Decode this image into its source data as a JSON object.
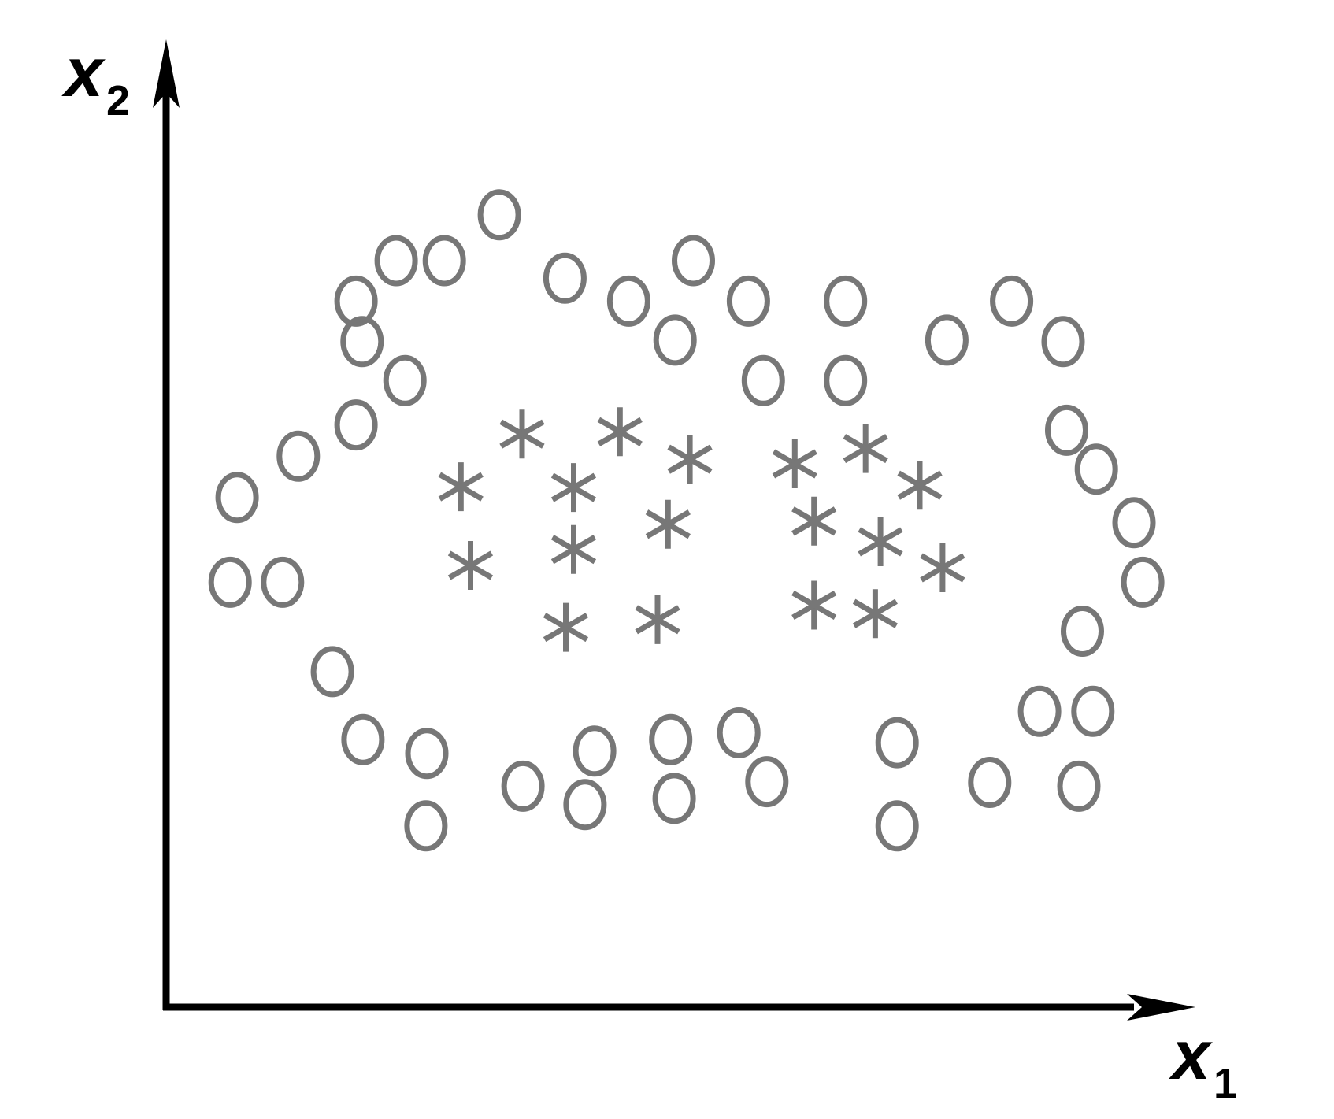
{
  "chart_data": {
    "type": "scatter",
    "xlabel": "x",
    "xlabel_sub": "1",
    "ylabel": "x",
    "ylabel_sub": "2",
    "xlim": [
      0,
      100
    ],
    "ylim": [
      0,
      100
    ],
    "grid": false,
    "ticks": false,
    "marker_color": "#777777",
    "axis_color": "#000000",
    "series": [
      {
        "marker": "circle",
        "points": [
          [
            31.0,
            89.4
          ],
          [
            19.2,
            83.4
          ],
          [
            24.7,
            83.4
          ],
          [
            14.6,
            78.1
          ],
          [
            38.5,
            81.1
          ],
          [
            45.8,
            78.1
          ],
          [
            53.2,
            83.4
          ],
          [
            59.5,
            78.1
          ],
          [
            51.1,
            73.0
          ],
          [
            61.2,
            67.7
          ],
          [
            70.6,
            78.1
          ],
          [
            70.6,
            67.7
          ],
          [
            15.3,
            72.8
          ],
          [
            20.2,
            67.7
          ],
          [
            82.2,
            73.0
          ],
          [
            89.6,
            78.1
          ],
          [
            95.5,
            72.8
          ],
          [
            14.6,
            61.9
          ],
          [
            8.0,
            57.8
          ],
          [
            1.0,
            52.4
          ],
          [
            95.9,
            61.2
          ],
          [
            99.3,
            56.1
          ],
          [
            103.6,
            49.1
          ],
          [
            104.6,
            41.3
          ],
          [
            0.2,
            41.3
          ],
          [
            6.2,
            41.3
          ],
          [
            97.7,
            34.9
          ],
          [
            11.9,
            29.6
          ],
          [
            92.8,
            24.4
          ],
          [
            98.9,
            24.4
          ],
          [
            15.4,
            20.7
          ],
          [
            22.7,
            18.9
          ],
          [
            41.9,
            19.2
          ],
          [
            50.6,
            20.7
          ],
          [
            58.4,
            21.6
          ],
          [
            76.5,
            20.3
          ],
          [
            33.7,
            14.6
          ],
          [
            40.8,
            12.2
          ],
          [
            51.0,
            13.0
          ],
          [
            61.6,
            15.2
          ],
          [
            87.1,
            15.1
          ],
          [
            97.3,
            14.6
          ],
          [
            22.6,
            9.4
          ],
          [
            76.5,
            9.4
          ]
        ]
      },
      {
        "marker": "asterisk",
        "points": [
          [
            33.6,
            60.7
          ],
          [
            44.8,
            61.0
          ],
          [
            52.8,
            57.4
          ],
          [
            64.8,
            56.8
          ],
          [
            72.9,
            58.8
          ],
          [
            79.1,
            54.0
          ],
          [
            26.6,
            53.8
          ],
          [
            39.5,
            53.7
          ],
          [
            50.3,
            48.9
          ],
          [
            67.0,
            49.3
          ],
          [
            74.6,
            46.6
          ],
          [
            39.5,
            45.6
          ],
          [
            27.7,
            43.5
          ],
          [
            81.7,
            43.2
          ],
          [
            67.0,
            38.3
          ],
          [
            74.0,
            37.2
          ],
          [
            38.6,
            35.4
          ],
          [
            49.1,
            36.4
          ]
        ]
      }
    ]
  }
}
